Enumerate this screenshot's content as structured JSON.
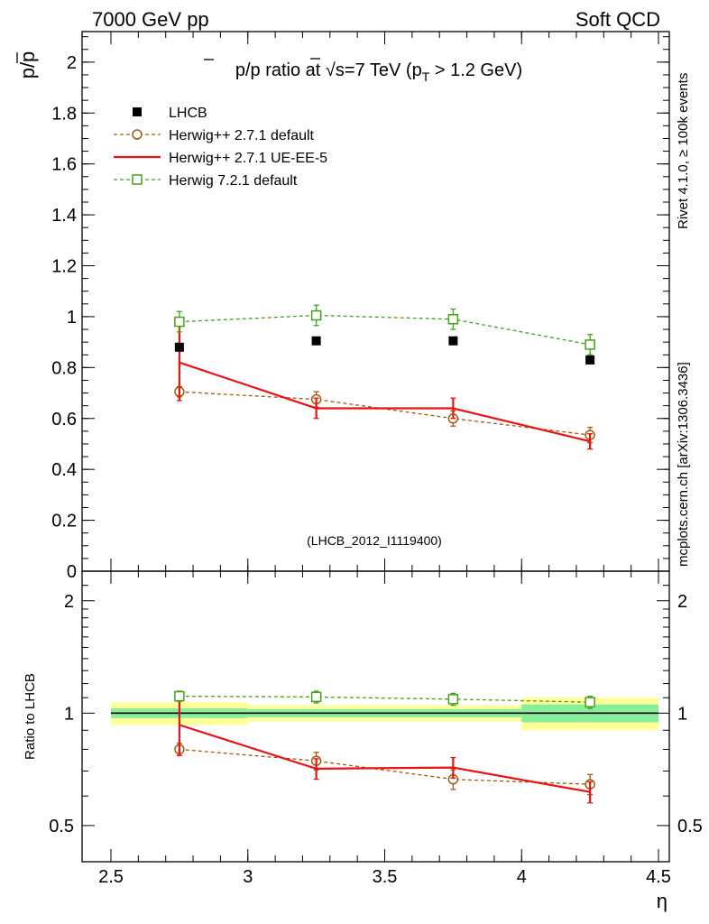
{
  "header": {
    "left": "7000 GeV pp",
    "right": "Soft QCD"
  },
  "side": {
    "rivet": "Rivet 4.1.0, ≥ 100k events",
    "mcplots": "mcplots.cern.ch [arXiv:1306.3436]"
  },
  "chart_data": {
    "type": "line",
    "title": "p̅/p ratio at √s=7 TeV (p_T > 1.2 GeV)",
    "analysis_label": "(LHCB_2012_I1119400)",
    "xlabel": "η",
    "ylabel": "p̅/p",
    "ratio_ylabel": "Ratio to LHCB",
    "xlim": [
      2.5,
      4.5
    ],
    "ylim": [
      0,
      2.12
    ],
    "ratio_ylim_log": [
      0.4,
      2.4
    ],
    "x_ticks": [
      "2.5",
      "3",
      "3.5",
      "4",
      "4.5"
    ],
    "x_tick_values": [
      2.5,
      3,
      3.5,
      4,
      4.5
    ],
    "y_ticks": [
      "0",
      "0.2",
      "0.4",
      "0.6",
      "0.8",
      "1",
      "1.2",
      "1.4",
      "1.6",
      "1.8",
      "2"
    ],
    "y_tick_values": [
      0,
      0.2,
      0.4,
      0.6,
      0.8,
      1,
      1.2,
      1.4,
      1.6,
      1.8,
      2
    ],
    "ratio_ticks": [
      "0.5",
      "1",
      "2"
    ],
    "ratio_tick_values": [
      0.5,
      1,
      2
    ],
    "bins": [
      [
        2.5,
        3.0
      ],
      [
        3.0,
        3.5
      ],
      [
        3.5,
        4.0
      ],
      [
        4.0,
        4.5
      ]
    ],
    "x": [
      2.75,
      3.25,
      3.75,
      4.25
    ],
    "series": [
      {
        "name": "LHCB",
        "kind": "data",
        "color": "#000000",
        "values": [
          0.88,
          0.905,
          0.905,
          0.83
        ],
        "ratio": [
          1.0,
          1.0,
          1.0,
          1.0
        ],
        "band_inner": [
          0.03,
          0.025,
          0.025,
          0.055
        ],
        "band_outer": [
          0.07,
          0.05,
          0.05,
          0.1
        ]
      },
      {
        "name": "Herwig++ 2.7.1 default",
        "kind": "circle",
        "color": "#a05a0a",
        "values": [
          0.705,
          0.675,
          0.6,
          0.535
        ],
        "errors": [
          0.02,
          0.03,
          0.03,
          0.03
        ],
        "ratio": [
          0.8,
          0.745,
          0.665,
          0.645
        ],
        "ratio_errors": [
          0.03,
          0.04,
          0.04,
          0.04
        ]
      },
      {
        "name": "Herwig++ 2.7.1 UE-EE-5",
        "kind": "line",
        "color": "#ee1111",
        "values": [
          0.82,
          0.64,
          0.64,
          0.51
        ],
        "errors": [
          0.15,
          0.04,
          0.04,
          0.03
        ],
        "ratio": [
          0.93,
          0.71,
          0.715,
          0.615
        ],
        "ratio_errors": [
          0.16,
          0.045,
          0.045,
          0.04
        ]
      },
      {
        "name": "Herwig 7.2.1 default",
        "kind": "square",
        "color": "#44a018",
        "values": [
          0.98,
          1.005,
          0.99,
          0.89
        ],
        "errors": [
          0.04,
          0.04,
          0.04,
          0.04
        ],
        "ratio": [
          1.11,
          1.105,
          1.09,
          1.07
        ],
        "ratio_errors": [
          0.035,
          0.04,
          0.04,
          0.04
        ]
      }
    ]
  }
}
